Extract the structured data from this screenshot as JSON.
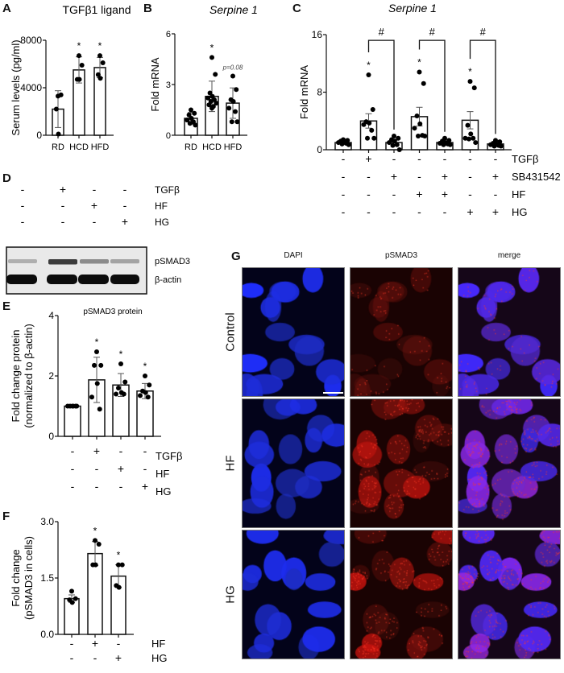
{
  "panels": {
    "A": {
      "label": "A"
    },
    "B": {
      "label": "B"
    },
    "C": {
      "label": "C"
    },
    "D": {
      "label": "D"
    },
    "E": {
      "label": "E"
    },
    "F": {
      "label": "F"
    },
    "G": {
      "label": "G"
    }
  },
  "chart_data": [
    {
      "id": "A",
      "type": "bar",
      "title": "TGFβ1 ligand",
      "title_italic": false,
      "xlabel": "",
      "ylabel": "Serum levels (pg/ml)",
      "ylim": [
        0,
        8000
      ],
      "yticks": [
        0,
        4000,
        8000
      ],
      "categories": [
        "RD",
        "HCD",
        "HFD"
      ],
      "values": [
        2200,
        5500,
        5700
      ],
      "errors": [
        1550,
        1100,
        850
      ],
      "points": [
        [
          3300,
          3400,
          2200,
          100
        ],
        [
          6700,
          5900,
          4700,
          4700
        ],
        [
          6700,
          6100,
          5100,
          4800
        ]
      ],
      "annotations": [
        "",
        "*",
        "*"
      ]
    },
    {
      "id": "B",
      "type": "bar",
      "title": "Serpine 1",
      "title_italic": true,
      "xlabel": "",
      "ylabel": "Fold mRNA",
      "ylim": [
        0,
        6
      ],
      "yticks": [
        0,
        3,
        6
      ],
      "categories": [
        "RD",
        "HCD",
        "HFD"
      ],
      "values": [
        1.0,
        2.3,
        1.9
      ],
      "errors": [
        0.35,
        0.9,
        0.9
      ],
      "points": [
        [
          1.5,
          1.3,
          1.2,
          1.0,
          0.9,
          0.8,
          0.7,
          0.6
        ],
        [
          4.6,
          3.6,
          2.5,
          2.3,
          2.2,
          2.1,
          2.0,
          1.9,
          1.8,
          1.7,
          1.6
        ],
        [
          3.5,
          2.7,
          2.1,
          2.0,
          1.6,
          1.4,
          0.8,
          0.8
        ]
      ],
      "annotations": [
        "",
        "*",
        "p=0.08"
      ]
    },
    {
      "id": "C",
      "type": "bar",
      "title": "Serpine 1",
      "title_italic": true,
      "xlabel": "",
      "ylabel": "Fold mRNA",
      "ylim": [
        0,
        16
      ],
      "yticks": [
        0,
        8,
        16
      ],
      "categories": [
        "1",
        "2",
        "3",
        "4",
        "5",
        "6",
        "7"
      ],
      "values": [
        1.0,
        4.0,
        1.0,
        4.6,
        1.0,
        4.1,
        0.8
      ],
      "errors": [
        0.2,
        1.0,
        0.3,
        1.3,
        0.2,
        1.2,
        0.2
      ],
      "points": [
        [
          1.4,
          1.3,
          1.2,
          1.1,
          1.0,
          0.9,
          0.8,
          0.7
        ],
        [
          10.4,
          5.6,
          3.9,
          3.7,
          3.5,
          2.7,
          1.6,
          1.6
        ],
        [
          1.9,
          1.6,
          1.4,
          1.2,
          1.0,
          0.7,
          0.6,
          0.0
        ],
        [
          10.8,
          9.2,
          4.7,
          3.6,
          3.0,
          2.0,
          1.9,
          1.9
        ],
        [
          1.6,
          1.3,
          1.2,
          1.0,
          0.9,
          0.8,
          0.7,
          0.7
        ],
        [
          9.5,
          8.6,
          3.4,
          2.2,
          1.6,
          1.6,
          1.5,
          1.0
        ],
        [
          1.3,
          1.1,
          0.9,
          0.8,
          0.7,
          0.6,
          0.5,
          0.5
        ]
      ],
      "annotations": [
        "",
        "*",
        "",
        "*",
        "",
        "*",
        ""
      ],
      "brackets": [
        {
          "from": 1,
          "to": 2,
          "label": "#"
        },
        {
          "from": 3,
          "to": 4,
          "label": "#"
        },
        {
          "from": 5,
          "to": 6,
          "label": "#"
        }
      ],
      "conditions": [
        {
          "name": "TGFβ",
          "signs": [
            "-",
            "+",
            "-",
            "-",
            "-",
            "-",
            "-"
          ]
        },
        {
          "name": "SB431542",
          "signs": [
            "-",
            "-",
            "+",
            "-",
            "+",
            "-",
            "+"
          ]
        },
        {
          "name": "HF",
          "signs": [
            "-",
            "-",
            "-",
            "+",
            "+",
            "-",
            "-"
          ]
        },
        {
          "name": "HG",
          "signs": [
            "-",
            "-",
            "-",
            "-",
            "-",
            "+",
            "+"
          ]
        }
      ]
    },
    {
      "id": "E",
      "type": "bar",
      "title": "pSMAD3 protein",
      "title_italic": false,
      "xlabel": "",
      "ylabel": "Fold change protein (normalized to β-actin)",
      "ylabel_lines": [
        "Fold change protein",
        "(normalized to β-actin)"
      ],
      "ylim": [
        0,
        4
      ],
      "yticks": [
        0,
        2,
        4
      ],
      "categories": [
        "1",
        "2",
        "3",
        "4"
      ],
      "values": [
        1.0,
        1.87,
        1.7,
        1.5
      ],
      "errors": [
        0.03,
        0.75,
        0.38,
        0.25
      ],
      "points": [
        [
          1.0,
          1.0,
          1.0,
          1.0,
          1.0,
          1.0
        ],
        [
          2.8,
          2.35,
          2.35,
          1.75,
          1.3,
          0.9
        ],
        [
          2.4,
          1.8,
          1.6,
          1.45,
          1.4,
          1.4
        ],
        [
          2.0,
          1.7,
          1.5,
          1.45,
          1.35,
          1.3
        ]
      ],
      "annotations": [
        "",
        "*",
        "*",
        "*"
      ],
      "conditions": [
        {
          "name": "TGFβ",
          "signs": [
            "-",
            "+",
            "-",
            "-"
          ]
        },
        {
          "name": "HF",
          "signs": [
            "-",
            "-",
            "+",
            "-"
          ]
        },
        {
          "name": "HG",
          "signs": [
            "-",
            "-",
            "-",
            "+"
          ]
        }
      ]
    },
    {
      "id": "F",
      "type": "bar",
      "title": "",
      "title_italic": false,
      "xlabel": "",
      "ylabel": "Fold change (pSMAD3 in cells)",
      "ylabel_lines": [
        "Fold change",
        "(pSMAD3 in cells)"
      ],
      "ylim": [
        0,
        3.0
      ],
      "yticks": [
        0.0,
        1.5,
        3.0
      ],
      "ytick_labels": [
        "0.0",
        "1.5",
        "3.0"
      ],
      "categories": [
        "1",
        "2",
        "3"
      ],
      "values": [
        0.95,
        2.15,
        1.55
      ],
      "errors": [
        0.1,
        0.32,
        0.3
      ],
      "points": [
        [
          1.15,
          0.95,
          0.92,
          0.85
        ],
        [
          2.5,
          2.4,
          1.85,
          1.85
        ],
        [
          1.85,
          1.85,
          1.3,
          1.25
        ]
      ],
      "annotations": [
        "",
        "*",
        "*"
      ],
      "conditions": [
        {
          "name": "HF",
          "signs": [
            "-",
            "+",
            "-"
          ]
        },
        {
          "name": "HG",
          "signs": [
            "-",
            "-",
            "+"
          ]
        }
      ]
    }
  ],
  "western_blot": {
    "conditions": [
      {
        "name": "TGFβ",
        "signs": [
          "-",
          "+",
          "-",
          "-"
        ]
      },
      {
        "name": "HF",
        "signs": [
          "-",
          "-",
          "+",
          "-"
        ]
      },
      {
        "name": "HG",
        "signs": [
          "-",
          "-",
          "-",
          "+"
        ]
      }
    ],
    "bands": [
      "pSMAD3",
      "β-actin"
    ],
    "pSMAD3_intensity": [
      0.35,
      0.85,
      0.5,
      0.4
    ],
    "actin_intensity": [
      0.95,
      0.95,
      0.95,
      0.98
    ]
  },
  "microscopy": {
    "columns": [
      "DAPI",
      "pSMAD3",
      "merge"
    ],
    "rows": [
      "Control",
      "HF",
      "HG"
    ],
    "colors": {
      "dapi": "#1a2bd9",
      "psmad3": "#d42a1a",
      "background": "#05030f"
    },
    "red_intensity": [
      0.25,
      0.75,
      0.8
    ]
  }
}
